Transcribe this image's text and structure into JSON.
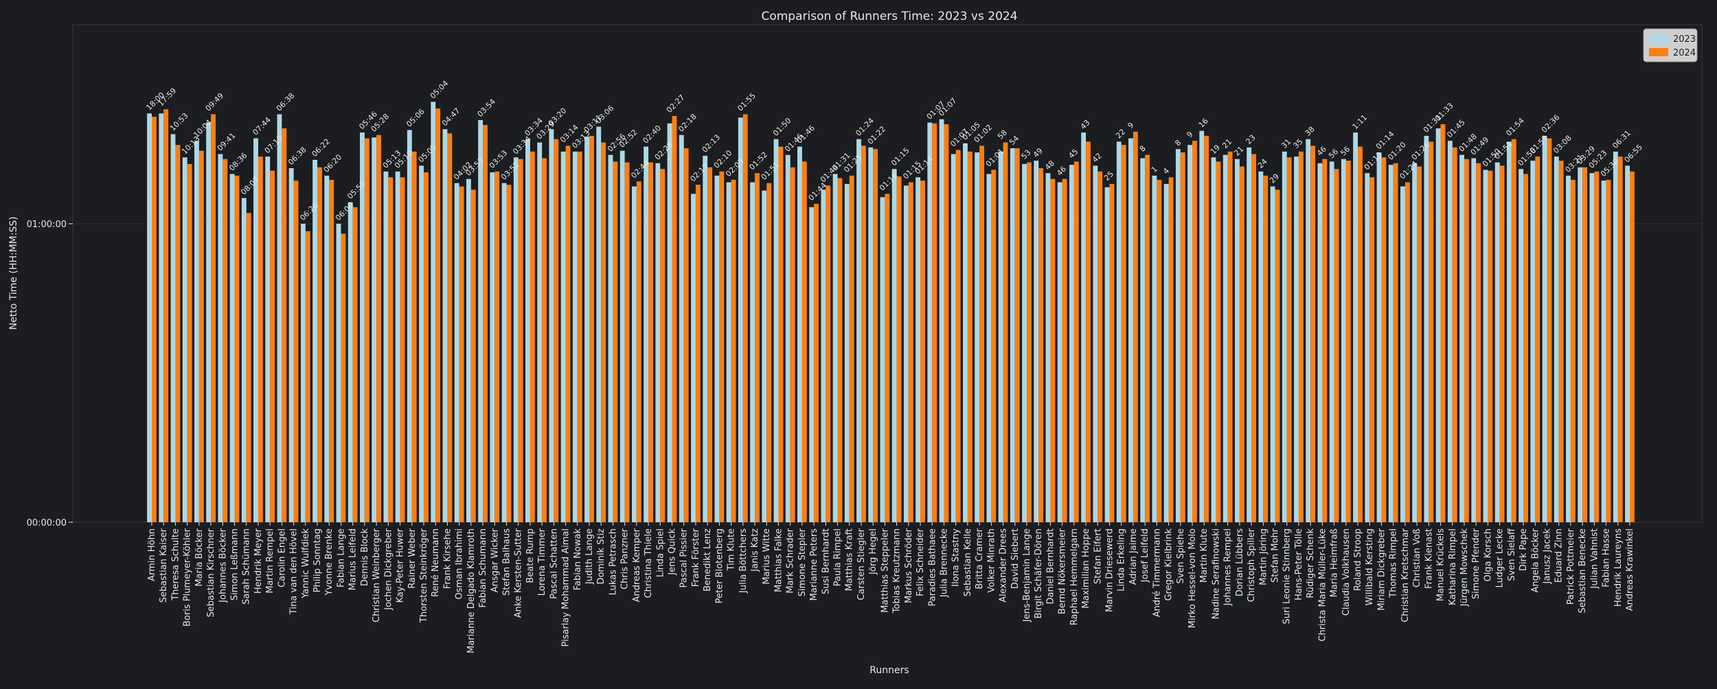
{
  "chart_data": {
    "type": "bar",
    "title": "Comparison of Runners Time: 2023 vs 2024",
    "xlabel": "Runners",
    "ylabel": "Netto Time (HH:MM:SS)",
    "y_unit": "seconds",
    "ylim_seconds": [
      0,
      6000
    ],
    "yticks": [
      {
        "value": 0,
        "label": "00:00:00"
      },
      {
        "value": 3600,
        "label": "01:00:00"
      }
    ],
    "grid": true,
    "legend_position": "top-right",
    "colors": {
      "2023": "#add8e6",
      "2024": "#ff7f0e",
      "background": "#1b1d20",
      "text": "#e8e8e8"
    },
    "categories": [
      "Armin Höhn",
      "Sebastian Kaiser",
      "Theresa Schulte",
      "Boris Plumeyer-Köhler",
      "Maria Böcker",
      "Sebastian Kirschner",
      "Johannes Böcker",
      "Simon Leßmann",
      "Sarah Schümann",
      "Hendrik Meyer",
      "Martin Rempel",
      "Carolin Engel",
      "Tina van den Hövel",
      "Yannic Wulfdiek",
      "Philip Sonntag",
      "Yvonne Brenke",
      "Fabian Lange",
      "Marius Leifeld",
      "Dennis Block",
      "Christian Weinberger",
      "Jochen Dickgreber",
      "Kay-Peter Huwer",
      "Rainer Weber",
      "Thorsten Steinkröger",
      "René Neumann",
      "Frank Kirsehe",
      "Osman Ibrahimi",
      "Marianne Delgado Klamroth",
      "Fabian Schumann",
      "Ansgar Wicker",
      "Stefan Balhaus",
      "Anke Kersten-Sutter",
      "Beate Rump",
      "Lorena Timmer",
      "Pascal Schatten",
      "Pisarlay Mohammad Aimal",
      "Fabian Nowak",
      "Judith Lange",
      "Dominik Stiz",
      "Lukas Petrasch",
      "Chris Panzner",
      "Andreas Kemper",
      "Christina Thiele",
      "Linda Spiel",
      "Jens Quick",
      "Pascal Pissier",
      "Frank Förster",
      "Benedikt Lenz",
      "Peter Blotenberg",
      "Tim Klute",
      "Julia Böttchers",
      "Janis Katz",
      "Marius Witte",
      "Matthias Falke",
      "Mark Schrader",
      "Simone Stepler",
      "Marianne Peters",
      "Susi Bernhardt",
      "Paula Rimpel",
      "Matthias Kraft",
      "Carsten Stiegler",
      "Jörg Hegel",
      "Matthias Steppeler",
      "Tobias Kreutzmann",
      "Markus Schröder",
      "Felix Schneider",
      "Paradies Bathaee",
      "Julia Brennecke",
      "Ilona Stastny",
      "Sebastian Kelle",
      "Britta Cramer",
      "Volker Minrath",
      "Alexander Drees",
      "David Siebert",
      "Jens-Benjamin Lange",
      "Birgit Schäfer-Dören",
      "Daniel Bernhardt",
      "Bernd Nökersmeier",
      "Raphael Hemmelgarn",
      "Maximilian Hoppe",
      "Stefan Eifert",
      "Marvin Driesewerd",
      "Linda Erkeling",
      "Adrian Jaime",
      "Josef Leifeld",
      "André Timmermann",
      "Gregor Kielbrink",
      "Sven Spiehe",
      "Mirko Hessel-von Molo",
      "Martin Klute",
      "Nadine Serafinowski",
      "Johannes Rempel",
      "Dorian Lübbers",
      "Christoph Spiller",
      "Martin Jöring",
      "Stefan Mohr",
      "Suri Leonie Stinnberg",
      "Hans-Peter Tölle",
      "Rüdiger Schenk",
      "Christa Maria Müller-Lüke",
      "Maria Heimfraß",
      "Claudia Volkhausen",
      "Roland Stroop",
      "Willibald Kersting",
      "Miriam Dickgreber",
      "Thomas Rimpel",
      "Christian Kretschmar",
      "Christian Voß",
      "Frank Kienast",
      "Manuel Krückels",
      "Katharina Rimpel",
      "Jürgen Mowschek",
      "Simone Pfender",
      "Olga Korsch",
      "Ludger Lecke",
      "Sven Sielaff",
      "Dirk Pape",
      "Angela Böcker",
      "Janusz Jacek",
      "Eduard Zinn",
      "Patrick Pottmeier",
      "Sebastian Benecke",
      "Julian Vahnist",
      "Fabian Hasse",
      "Hendrik Laureyns",
      "Andreas Krawinkel"
    ],
    "series": [
      {
        "name": "2023",
        "values": [
          4930,
          4930,
          4680,
          4400,
          4600,
          4820,
          4440,
          4200,
          3910,
          4630,
          4410,
          4920,
          4270,
          3600,
          4370,
          4180,
          3600,
          3860,
          4700,
          4640,
          4230,
          4230,
          4730,
          4300,
          5070,
          4740,
          4090,
          4140,
          4850,
          4220,
          4090,
          4400,
          4620,
          4580,
          4740,
          4470,
          4470,
          4650,
          4770,
          4430,
          4480,
          4050,
          4530,
          4330,
          4810,
          4670,
          3960,
          4420,
          4180,
          4100,
          4880,
          4100,
          4000,
          4620,
          4430,
          4530,
          3800,
          4010,
          4200,
          4080,
          4620,
          4520,
          3920,
          4260,
          4060,
          4160,
          4820,
          4860,
          4440,
          4570,
          4460,
          4200,
          4470,
          4510,
          4320,
          4360,
          4210,
          4100,
          4310,
          4700,
          4300,
          4040,
          4590,
          4630,
          4390,
          4180,
          4080,
          4500,
          4550,
          4720,
          4400,
          4430,
          4380,
          4520,
          4230,
          4050,
          4470,
          4410,
          4620,
          4330,
          4350,
          4380,
          4700,
          4210,
          4460,
          4310,
          4050,
          4330,
          4660,
          4750,
          4600,
          4430,
          4390,
          4250,
          4340,
          4590,
          4260,
          4360,
          4660,
          4410,
          4180,
          4280,
          4210,
          4120,
          4470,
          4300
        ]
      },
      {
        "name": "2024",
        "values": [
          4890,
          4980,
          4550,
          4320,
          4480,
          4920,
          4380,
          4180,
          3730,
          4410,
          4240,
          4750,
          4120,
          3510,
          4280,
          4130,
          3480,
          3800,
          4630,
          4670,
          4160,
          4160,
          4470,
          4220,
          4990,
          4690,
          4050,
          4010,
          4790,
          4230,
          4070,
          4380,
          4470,
          4390,
          4620,
          4540,
          4470,
          4660,
          4580,
          4350,
          4340,
          4110,
          4340,
          4260,
          4900,
          4510,
          4070,
          4280,
          4230,
          4130,
          4920,
          4210,
          4090,
          4530,
          4280,
          4350,
          3840,
          4060,
          4150,
          4180,
          4540,
          4500,
          3960,
          4170,
          4100,
          4120,
          4810,
          4800,
          4490,
          4470,
          4540,
          4250,
          4580,
          4510,
          4340,
          4270,
          4140,
          4140,
          4350,
          4590,
          4230,
          4080,
          4550,
          4710,
          4430,
          4130,
          4160,
          4460,
          4600,
          4660,
          4350,
          4470,
          4290,
          4440,
          4180,
          4010,
          4400,
          4470,
          4540,
          4380,
          4260,
          4360,
          4530,
          4160,
          4400,
          4330,
          4100,
          4290,
          4590,
          4800,
          4520,
          4380,
          4330,
          4240,
          4300,
          4620,
          4200,
          4410,
          4630,
          4360,
          4130,
          4280,
          4230,
          4130,
          4410,
          4230
        ]
      }
    ],
    "data_labels": [
      "18:00",
      "17:59",
      "10:53",
      "10:13",
      "10:04",
      "09:49",
      "09:41",
      "08:36",
      "08:07",
      "07:44",
      "07:10",
      "06:38",
      "06:38",
      "06:26",
      "06:22",
      "06:20",
      "06:00",
      "05:50",
      "05:46",
      "05:28",
      "05:13",
      "05:10",
      "05:06",
      "05:05",
      "05:04",
      "04:47",
      "04:02",
      "03:53",
      "03:54",
      "03:53",
      "03:52",
      "03:34",
      "03:34",
      "03:29",
      "03:20",
      "03:14",
      "03:13",
      "03:11",
      "03:06",
      "02:56",
      "02:52",
      "02:44",
      "02:40",
      "02:28",
      "02:27",
      "02:18",
      "02:17",
      "02:13",
      "02:10",
      "02:03",
      "01:55",
      "01:52",
      "01:51",
      "01:50",
      "01:46",
      "01:46",
      "01:44",
      "01:44",
      "01:31",
      "01:25",
      "01:24",
      "01:22",
      "01:16",
      "01:15",
      "01:15",
      "01:14",
      "01:07",
      "01:07",
      "01:07",
      "01:05",
      "01:02",
      "01:01",
      "58",
      "54",
      "53",
      "49",
      "48",
      "46",
      "45",
      "43",
      "42",
      "25",
      "22",
      "9",
      "8",
      "1",
      "4",
      "8",
      "9",
      "16",
      "19",
      "21",
      "21",
      "23",
      "24",
      "29",
      "31",
      "35",
      "38",
      "46",
      "56",
      "56",
      "1:11",
      "01:13",
      "01:14",
      "01:20",
      "01:24",
      "01:26",
      "01:31",
      "01:33",
      "01:45",
      "01:48",
      "01:49",
      "01:50",
      "01:51",
      "01:54",
      "01:56",
      "01:59",
      "02:36",
      "03:08",
      "03:21",
      "03:29",
      "05:23",
      "05:30",
      "06:31",
      "06:55"
    ]
  }
}
